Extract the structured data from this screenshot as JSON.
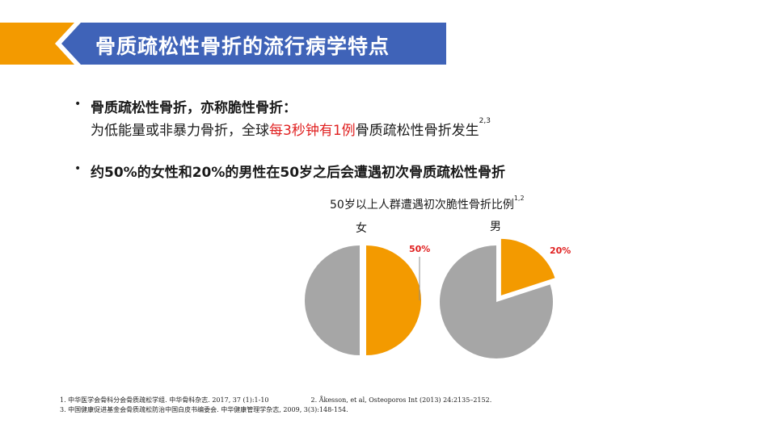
{
  "header": {
    "title": "骨质疏松性骨折的流行病学特点",
    "colors": {
      "banner": "#3f63b8",
      "accent": "#f39a00"
    }
  },
  "bullets": {
    "b1_title": "骨质疏松性骨折，亦称脆性骨折：",
    "b1_pre": "为低能量或非暴力骨折，全球",
    "b1_highlight": "每3秒钟有1例",
    "b1_post": "骨质疏松性骨折发生",
    "b1_sup": "2,3",
    "b2_text": "约50%的女性和20%的男性在50岁之后会遭遇初次骨质疏松性骨折"
  },
  "chart_data": {
    "type": "pie",
    "title": "50岁以上人群遭遇初次脆性骨折比例",
    "title_sup": "1,2",
    "charts": [
      {
        "label": "女",
        "highlight_value": 50,
        "highlight_label": "50%",
        "rest_value": 50
      },
      {
        "label": "男",
        "highlight_value": 20,
        "highlight_label": "20%",
        "rest_value": 80
      }
    ],
    "colors": {
      "highlight": "#f39a00",
      "rest": "#a6a6a6",
      "label": "#e02020"
    }
  },
  "references": {
    "r1": "1. 中华医学会骨科分会骨质疏松学组. 中华骨科杂志. 2017, 37 (1):1-10",
    "r2": "2. Åkesson, et al, Osteoporos Int (2013) 24:2135–2152.",
    "r3": "3. 中国健康促进基金会骨质疏松防治中国白皮书编委会. 中华健康管理学杂志, 2009, 3(3):148-154."
  }
}
